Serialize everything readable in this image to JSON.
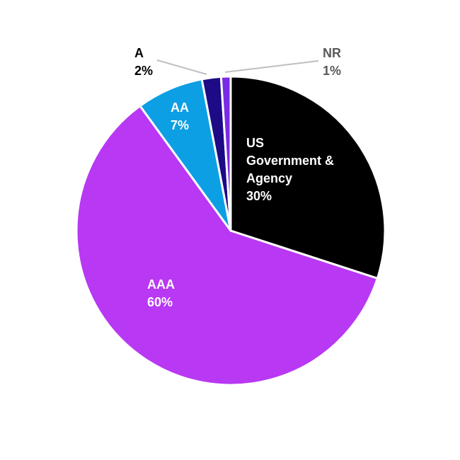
{
  "chart_data": {
    "type": "pie",
    "categories": [
      "US Government & Agency",
      "AAA",
      "AA",
      "A",
      "NR"
    ],
    "values": [
      30,
      60,
      7,
      2,
      1
    ],
    "value_labels": [
      "30%",
      "60%",
      "7%",
      "2%",
      "1%"
    ],
    "colors": [
      "#000000",
      "#b838f3",
      "#0c9fe3",
      "#1c0a86",
      "#7a2ae6"
    ]
  }
}
